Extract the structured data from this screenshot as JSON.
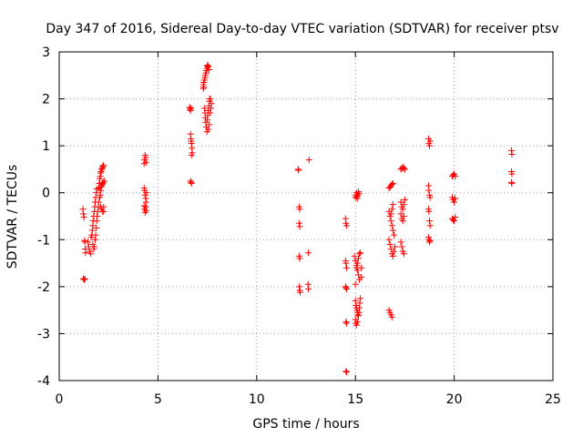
{
  "chart_data": {
    "type": "scatter",
    "title": "Day 347 of 2016, Sidereal Day-to-day VTEC variation (SDTVAR) for receiver ptsv",
    "xlabel": "GPS time / hours",
    "ylabel": "SDTVAR / TECUs",
    "xlim": [
      0,
      25
    ],
    "ylim": [
      -4,
      3
    ],
    "xticks": [
      "0",
      "5",
      "10",
      "15",
      "20",
      "25"
    ],
    "yticks": [
      "-4",
      "-3",
      "-2",
      "-1",
      "0",
      "1",
      "2",
      "3"
    ],
    "grid": true,
    "marker": "+",
    "marker_color": "#ff0000",
    "series": [
      {
        "name": "SDTVAR",
        "points": [
          [
            1.2,
            -0.35
          ],
          [
            1.22,
            -0.45
          ],
          [
            1.25,
            -0.52
          ],
          [
            1.28,
            -1.02
          ],
          [
            1.3,
            -1.05
          ],
          [
            1.32,
            -1.2
          ],
          [
            1.33,
            -1.28
          ],
          [
            1.22,
            -1.83
          ],
          [
            1.26,
            -1.85
          ],
          [
            1.3,
            -1.84
          ],
          [
            1.45,
            -1.05
          ],
          [
            1.5,
            -1.15
          ],
          [
            1.55,
            -1.25
          ],
          [
            1.6,
            -1.3
          ],
          [
            1.62,
            -0.95
          ],
          [
            1.65,
            -0.9
          ],
          [
            1.68,
            -0.8
          ],
          [
            1.7,
            -0.7
          ],
          [
            1.72,
            -0.6
          ],
          [
            1.75,
            -0.5
          ],
          [
            1.78,
            -0.4
          ],
          [
            1.8,
            -0.3
          ],
          [
            1.82,
            -0.2
          ],
          [
            1.85,
            -0.1
          ],
          [
            1.88,
            0.0
          ],
          [
            1.9,
            0.08
          ],
          [
            1.7,
            -1.1
          ],
          [
            1.75,
            -1.2
          ],
          [
            1.78,
            -1.15
          ],
          [
            1.82,
            -1.0
          ],
          [
            1.85,
            -0.9
          ],
          [
            1.88,
            -0.75
          ],
          [
            1.9,
            -0.6
          ],
          [
            1.92,
            -0.5
          ],
          [
            1.95,
            -0.4
          ],
          [
            1.98,
            -0.3
          ],
          [
            2.0,
            -0.2
          ],
          [
            2.0,
            0.1
          ],
          [
            2.02,
            0.2
          ],
          [
            2.05,
            0.3
          ],
          [
            2.08,
            0.35
          ],
          [
            2.1,
            0.42
          ],
          [
            2.12,
            0.45
          ],
          [
            2.15,
            0.5
          ],
          [
            2.18,
            0.52
          ],
          [
            2.2,
            0.55
          ],
          [
            2.22,
            0.58
          ],
          [
            2.25,
            0.58
          ],
          [
            2.05,
            -0.1
          ],
          [
            2.08,
            -0.05
          ],
          [
            2.1,
            0.05
          ],
          [
            2.12,
            0.12
          ],
          [
            2.15,
            0.15
          ],
          [
            2.18,
            0.18
          ],
          [
            2.2,
            0.2
          ],
          [
            2.22,
            0.22
          ],
          [
            2.1,
            -0.3
          ],
          [
            2.15,
            -0.35
          ],
          [
            2.2,
            -0.4
          ],
          [
            2.25,
            -0.4
          ],
          [
            2.25,
            -0.3
          ],
          [
            2.28,
            0.25
          ],
          [
            4.3,
            0.62
          ],
          [
            4.32,
            0.7
          ],
          [
            4.35,
            0.8
          ],
          [
            4.38,
            0.75
          ],
          [
            4.4,
            0.65
          ],
          [
            4.3,
            0.1
          ],
          [
            4.32,
            0.05
          ],
          [
            4.35,
            -0.05
          ],
          [
            4.38,
            -0.12
          ],
          [
            4.4,
            -0.2
          ],
          [
            4.42,
            0.0
          ],
          [
            4.3,
            -0.28
          ],
          [
            4.32,
            -0.35
          ],
          [
            4.35,
            -0.42
          ],
          [
            4.38,
            -0.3
          ],
          [
            4.4,
            -0.38
          ],
          [
            6.6,
            1.82
          ],
          [
            6.62,
            1.78
          ],
          [
            6.65,
            1.75
          ],
          [
            6.68,
            1.8
          ],
          [
            6.65,
            1.25
          ],
          [
            6.67,
            1.15
          ],
          [
            6.7,
            1.05
          ],
          [
            6.72,
            0.95
          ],
          [
            6.74,
            0.85
          ],
          [
            6.68,
            1.1
          ],
          [
            6.7,
            0.8
          ],
          [
            6.65,
            0.25
          ],
          [
            6.68,
            0.22
          ],
          [
            6.7,
            0.2
          ],
          [
            7.3,
            2.3
          ],
          [
            7.32,
            2.35
          ],
          [
            7.35,
            2.4
          ],
          [
            7.38,
            2.45
          ],
          [
            7.4,
            2.5
          ],
          [
            7.42,
            2.55
          ],
          [
            7.45,
            2.6
          ],
          [
            7.48,
            2.65
          ],
          [
            7.5,
            2.7
          ],
          [
            7.52,
            2.72
          ],
          [
            7.55,
            2.68
          ],
          [
            7.58,
            2.62
          ],
          [
            7.3,
            2.22
          ],
          [
            7.32,
            2.25
          ],
          [
            7.35,
            1.8
          ],
          [
            7.38,
            1.7
          ],
          [
            7.4,
            1.6
          ],
          [
            7.42,
            1.5
          ],
          [
            7.45,
            1.4
          ],
          [
            7.48,
            1.3
          ],
          [
            7.5,
            1.55
          ],
          [
            7.52,
            1.65
          ],
          [
            7.55,
            1.75
          ],
          [
            7.58,
            1.85
          ],
          [
            7.6,
            1.95
          ],
          [
            7.62,
            2.0
          ],
          [
            7.55,
            1.35
          ],
          [
            7.6,
            1.45
          ],
          [
            7.65,
            1.7
          ],
          [
            7.68,
            1.8
          ],
          [
            7.7,
            1.9
          ],
          [
            7.65,
            2.0
          ],
          [
            12.1,
            0.5
          ],
          [
            12.12,
            0.48
          ],
          [
            12.15,
            -0.3
          ],
          [
            12.18,
            -0.35
          ],
          [
            12.15,
            -0.65
          ],
          [
            12.18,
            -0.72
          ],
          [
            12.15,
            -1.35
          ],
          [
            12.18,
            -1.4
          ],
          [
            12.15,
            -2.0
          ],
          [
            12.18,
            -2.08
          ],
          [
            12.2,
            -2.12
          ],
          [
            12.65,
            0.7
          ],
          [
            12.62,
            -1.28
          ],
          [
            12.6,
            -1.95
          ],
          [
            12.62,
            -2.05
          ],
          [
            14.5,
            -0.55
          ],
          [
            14.52,
            -0.65
          ],
          [
            14.55,
            -0.7
          ],
          [
            14.5,
            -1.45
          ],
          [
            14.52,
            -1.5
          ],
          [
            14.55,
            -1.6
          ],
          [
            14.5,
            -2.0
          ],
          [
            14.52,
            -2.02
          ],
          [
            14.55,
            -2.05
          ],
          [
            14.52,
            -2.75
          ],
          [
            14.55,
            -2.78
          ],
          [
            14.52,
            -3.8
          ],
          [
            14.55,
            -3.82
          ],
          [
            15.0,
            -0.1
          ],
          [
            15.02,
            -0.05
          ],
          [
            15.05,
            0.0
          ],
          [
            15.08,
            -0.08
          ],
          [
            15.1,
            -0.12
          ],
          [
            15.12,
            -0.05
          ],
          [
            15.15,
            0.02
          ],
          [
            15.18,
            -0.02
          ],
          [
            14.95,
            -1.35
          ],
          [
            15.0,
            -1.45
          ],
          [
            15.05,
            -1.55
          ],
          [
            15.1,
            -1.65
          ],
          [
            15.15,
            -1.75
          ],
          [
            15.2,
            -1.85
          ],
          [
            15.0,
            -1.95
          ],
          [
            15.05,
            -1.6
          ],
          [
            15.1,
            -1.5
          ],
          [
            15.15,
            -1.4
          ],
          [
            15.2,
            -1.3
          ],
          [
            15.25,
            -1.28
          ],
          [
            15.3,
            -1.6
          ],
          [
            15.3,
            -1.8
          ],
          [
            15.0,
            -2.3
          ],
          [
            15.02,
            -2.4
          ],
          [
            15.05,
            -2.45
          ],
          [
            15.08,
            -2.5
          ],
          [
            15.1,
            -2.55
          ],
          [
            15.12,
            -2.6
          ],
          [
            15.15,
            -2.62
          ],
          [
            15.18,
            -2.55
          ],
          [
            15.2,
            -2.45
          ],
          [
            15.22,
            -2.35
          ],
          [
            15.25,
            -2.25
          ],
          [
            15.0,
            -2.7
          ],
          [
            15.02,
            -2.78
          ],
          [
            15.05,
            -2.82
          ],
          [
            15.1,
            -2.75
          ],
          [
            16.7,
            0.1
          ],
          [
            16.75,
            0.12
          ],
          [
            16.8,
            0.15
          ],
          [
            16.85,
            0.18
          ],
          [
            16.9,
            0.2
          ],
          [
            16.7,
            -0.4
          ],
          [
            16.75,
            -0.5
          ],
          [
            16.8,
            -0.6
          ],
          [
            16.85,
            -0.7
          ],
          [
            16.9,
            -0.8
          ],
          [
            16.95,
            -0.9
          ],
          [
            16.7,
            -1.0
          ],
          [
            16.75,
            -1.1
          ],
          [
            16.8,
            -1.2
          ],
          [
            16.85,
            -1.3
          ],
          [
            16.9,
            -1.35
          ],
          [
            16.95,
            -1.25
          ],
          [
            17.0,
            -1.15
          ],
          [
            16.8,
            -0.45
          ],
          [
            16.85,
            -0.35
          ],
          [
            16.9,
            -0.25
          ],
          [
            16.7,
            -2.5
          ],
          [
            16.75,
            -2.55
          ],
          [
            16.8,
            -2.6
          ],
          [
            16.85,
            -2.65
          ],
          [
            17.3,
            0.5
          ],
          [
            17.35,
            0.52
          ],
          [
            17.4,
            0.55
          ],
          [
            17.45,
            0.52
          ],
          [
            17.5,
            0.5
          ],
          [
            17.3,
            -0.2
          ],
          [
            17.35,
            -0.3
          ],
          [
            17.4,
            -0.35
          ],
          [
            17.45,
            -0.25
          ],
          [
            17.5,
            -0.15
          ],
          [
            17.3,
            -0.45
          ],
          [
            17.35,
            -0.55
          ],
          [
            17.4,
            -0.6
          ],
          [
            17.45,
            -0.5
          ],
          [
            17.3,
            -1.05
          ],
          [
            17.35,
            -1.15
          ],
          [
            17.4,
            -1.25
          ],
          [
            17.45,
            -1.3
          ],
          [
            18.7,
            1.15
          ],
          [
            18.72,
            1.05
          ],
          [
            18.75,
            1.0
          ],
          [
            18.78,
            1.1
          ],
          [
            18.7,
            0.15
          ],
          [
            18.72,
            0.05
          ],
          [
            18.75,
            -0.05
          ],
          [
            18.78,
            -0.1
          ],
          [
            18.7,
            -0.35
          ],
          [
            18.72,
            -0.4
          ],
          [
            18.75,
            -0.6
          ],
          [
            18.78,
            -0.7
          ],
          [
            18.7,
            -0.95
          ],
          [
            18.72,
            -1.0
          ],
          [
            18.75,
            -1.05
          ],
          [
            18.78,
            -1.02
          ],
          [
            19.9,
            0.35
          ],
          [
            19.95,
            0.38
          ],
          [
            20.0,
            0.4
          ],
          [
            20.05,
            0.35
          ],
          [
            19.9,
            -0.1
          ],
          [
            19.95,
            -0.15
          ],
          [
            20.0,
            -0.2
          ],
          [
            20.05,
            -0.12
          ],
          [
            19.9,
            -0.55
          ],
          [
            19.95,
            -0.58
          ],
          [
            20.0,
            -0.6
          ],
          [
            20.05,
            -0.52
          ],
          [
            22.9,
            0.9
          ],
          [
            22.92,
            0.82
          ],
          [
            22.9,
            0.45
          ],
          [
            22.92,
            0.4
          ],
          [
            22.9,
            0.22
          ],
          [
            22.92,
            0.2
          ]
        ]
      }
    ]
  }
}
